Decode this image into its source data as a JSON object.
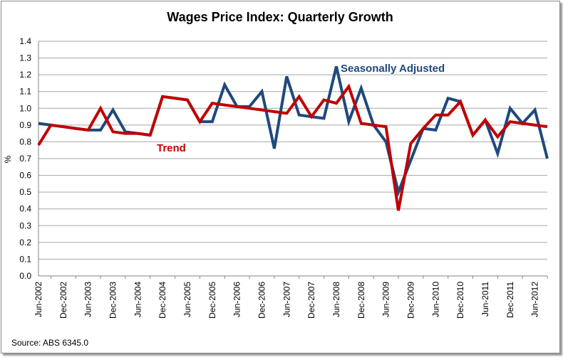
{
  "chart_data": {
    "type": "line",
    "title": "Wages Price Index: Quarterly Growth",
    "xlabel": "",
    "ylabel": "%",
    "ylim": [
      0.0,
      1.4
    ],
    "ytick_step": 0.1,
    "yticks": [
      "0.0",
      "0.1",
      "0.2",
      "0.3",
      "0.4",
      "0.5",
      "0.6",
      "0.7",
      "0.8",
      "0.9",
      "1.0",
      "1.1",
      "1.2",
      "1.3",
      "1.4"
    ],
    "grid": true,
    "x": [
      "Jun-2002",
      "Sep-2002",
      "Dec-2002",
      "Mar-2003",
      "Jun-2003",
      "Sep-2003",
      "Dec-2003",
      "Mar-2004",
      "Jun-2004",
      "Sep-2004",
      "Dec-2004",
      "Mar-2005",
      "Jun-2005",
      "Sep-2005",
      "Dec-2005",
      "Mar-2006",
      "Jun-2006",
      "Sep-2006",
      "Dec-2006",
      "Mar-2007",
      "Jun-2007",
      "Sep-2007",
      "Dec-2007",
      "Mar-2008",
      "Jun-2008",
      "Sep-2008",
      "Dec-2008",
      "Mar-2009",
      "Jun-2009",
      "Sep-2009",
      "Dec-2009",
      "Mar-2010",
      "Jun-2010",
      "Sep-2010",
      "Dec-2010",
      "Mar-2011",
      "Jun-2011",
      "Sep-2011",
      "Dec-2011",
      "Mar-2012",
      "Jun-2012",
      "Sep-2012"
    ],
    "xtick_labels": [
      "Jun-2002",
      "Dec-2002",
      "Jun-2003",
      "Dec-2003",
      "Jun-2004",
      "Dec-2004",
      "Jun-2005",
      "Dec-2005",
      "Jun-2006",
      "Dec-2006",
      "Jun-2007",
      "Dec-2007",
      "Jun-2008",
      "Dec-2008",
      "Jun-2009",
      "Dec-2009",
      "Jun-2010",
      "Dec-2010",
      "Jun-2011",
      "Dec-2011",
      "Jun-2012"
    ],
    "series": [
      {
        "name": "Seasonally Adjusted",
        "color": "#1f497d",
        "values": [
          0.91,
          0.9,
          0.89,
          0.88,
          0.87,
          0.87,
          0.99,
          0.86,
          0.85,
          0.84,
          1.07,
          1.06,
          1.05,
          0.92,
          0.92,
          1.14,
          1.01,
          1.01,
          1.1,
          0.76,
          1.19,
          0.96,
          0.95,
          0.94,
          1.25,
          0.92,
          1.12,
          0.9,
          0.8,
          0.5,
          0.69,
          0.88,
          0.87,
          1.06,
          1.04,
          0.84,
          0.93,
          0.73,
          1.0,
          0.91,
          0.99,
          0.7
        ]
      },
      {
        "name": "Trend",
        "color": "#c00000",
        "values": [
          0.78,
          0.9,
          0.89,
          0.88,
          0.87,
          1.0,
          0.86,
          0.85,
          0.85,
          0.84,
          1.07,
          1.06,
          1.05,
          0.92,
          1.03,
          1.02,
          1.01,
          1.0,
          0.99,
          0.98,
          0.97,
          1.07,
          0.95,
          1.05,
          1.03,
          1.13,
          0.91,
          0.9,
          0.89,
          0.39,
          0.79,
          0.88,
          0.96,
          0.96,
          1.04,
          0.84,
          0.93,
          0.83,
          0.92,
          0.91,
          0.9,
          0.89
        ]
      }
    ],
    "annotations": [
      {
        "text": "Seasonally Adjusted",
        "series": "Seasonally Adjusted"
      },
      {
        "text": "Trend",
        "series": "Trend"
      }
    ],
    "source": "Source: ABS 6345.0"
  }
}
